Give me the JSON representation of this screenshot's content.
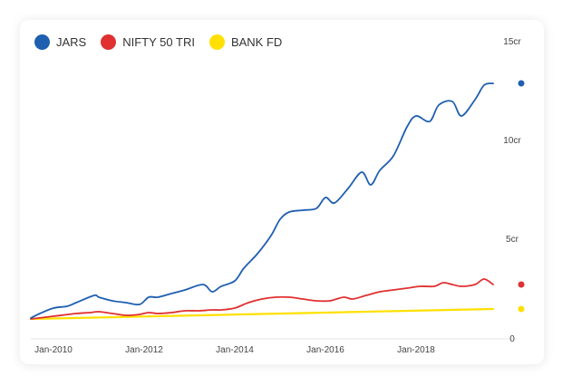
{
  "chart_data": {
    "type": "line",
    "title": "",
    "xlabel": "",
    "ylabel": "",
    "legend_position": "top-left",
    "grid": false,
    "x_ticks": [
      "Jan-2010",
      "Jan-2012",
      "Jan-2014",
      "Jan-2016",
      "Jan-2018"
    ],
    "y_ticks": [
      "0",
      "5cr",
      "10cr",
      "15cr"
    ],
    "x_range": [
      2009.5,
      2019.7
    ],
    "ylim": [
      0,
      15
    ],
    "series": [
      {
        "name": "JARS",
        "color": "#1F5FB0",
        "x": [
          2009.5,
          2009.7,
          2010.0,
          2010.3,
          2010.5,
          2010.9,
          2011.0,
          2011.3,
          2011.6,
          2011.9,
          2012.1,
          2012.3,
          2012.6,
          2012.9,
          2013.3,
          2013.5,
          2013.7,
          2014.0,
          2014.2,
          2014.5,
          2014.8,
          2015.0,
          2015.2,
          2015.5,
          2015.8,
          2016.0,
          2016.2,
          2016.5,
          2016.8,
          2017.0,
          2017.2,
          2017.5,
          2017.8,
          2018.0,
          2018.3,
          2018.5,
          2018.8,
          2019.0,
          2019.3,
          2019.5,
          2019.7
        ],
        "values": [
          0.05,
          0.3,
          0.6,
          0.7,
          0.9,
          1.3,
          1.2,
          1.0,
          0.9,
          0.8,
          1.2,
          1.2,
          1.4,
          1.6,
          1.9,
          1.5,
          1.8,
          2.1,
          2.8,
          3.6,
          4.6,
          5.5,
          5.9,
          6.0,
          6.1,
          6.7,
          6.4,
          7.2,
          8.1,
          7.4,
          8.2,
          9.0,
          10.6,
          11.2,
          10.9,
          11.8,
          12.0,
          11.2,
          12.1,
          12.9,
          13.0
        ]
      },
      {
        "name": "NIFTY 50 TRI",
        "color": "#E03030",
        "x": [
          2009.5,
          2010.0,
          2010.5,
          2010.8,
          2011.0,
          2011.3,
          2011.6,
          2011.9,
          2012.1,
          2012.3,
          2012.6,
          2012.9,
          2013.2,
          2013.5,
          2013.7,
          2014.0,
          2014.3,
          2014.6,
          2014.9,
          2015.2,
          2015.5,
          2015.8,
          2016.1,
          2016.4,
          2016.6,
          2016.9,
          2017.2,
          2017.5,
          2017.8,
          2018.1,
          2018.4,
          2018.6,
          2018.8,
          2019.0,
          2019.3,
          2019.5,
          2019.7
        ],
        "values": [
          0.0,
          0.15,
          0.3,
          0.35,
          0.4,
          0.3,
          0.2,
          0.25,
          0.35,
          0.3,
          0.35,
          0.45,
          0.45,
          0.5,
          0.5,
          0.6,
          0.9,
          1.1,
          1.2,
          1.2,
          1.1,
          1.0,
          1.0,
          1.2,
          1.1,
          1.3,
          1.5,
          1.6,
          1.7,
          1.8,
          1.8,
          2.0,
          1.9,
          1.8,
          1.9,
          2.2,
          1.9
        ]
      },
      {
        "name": "BANK FD",
        "color": "#FFE000",
        "x": [
          2009.5,
          2019.7
        ],
        "values": [
          0.0,
          0.55
        ]
      }
    ]
  }
}
